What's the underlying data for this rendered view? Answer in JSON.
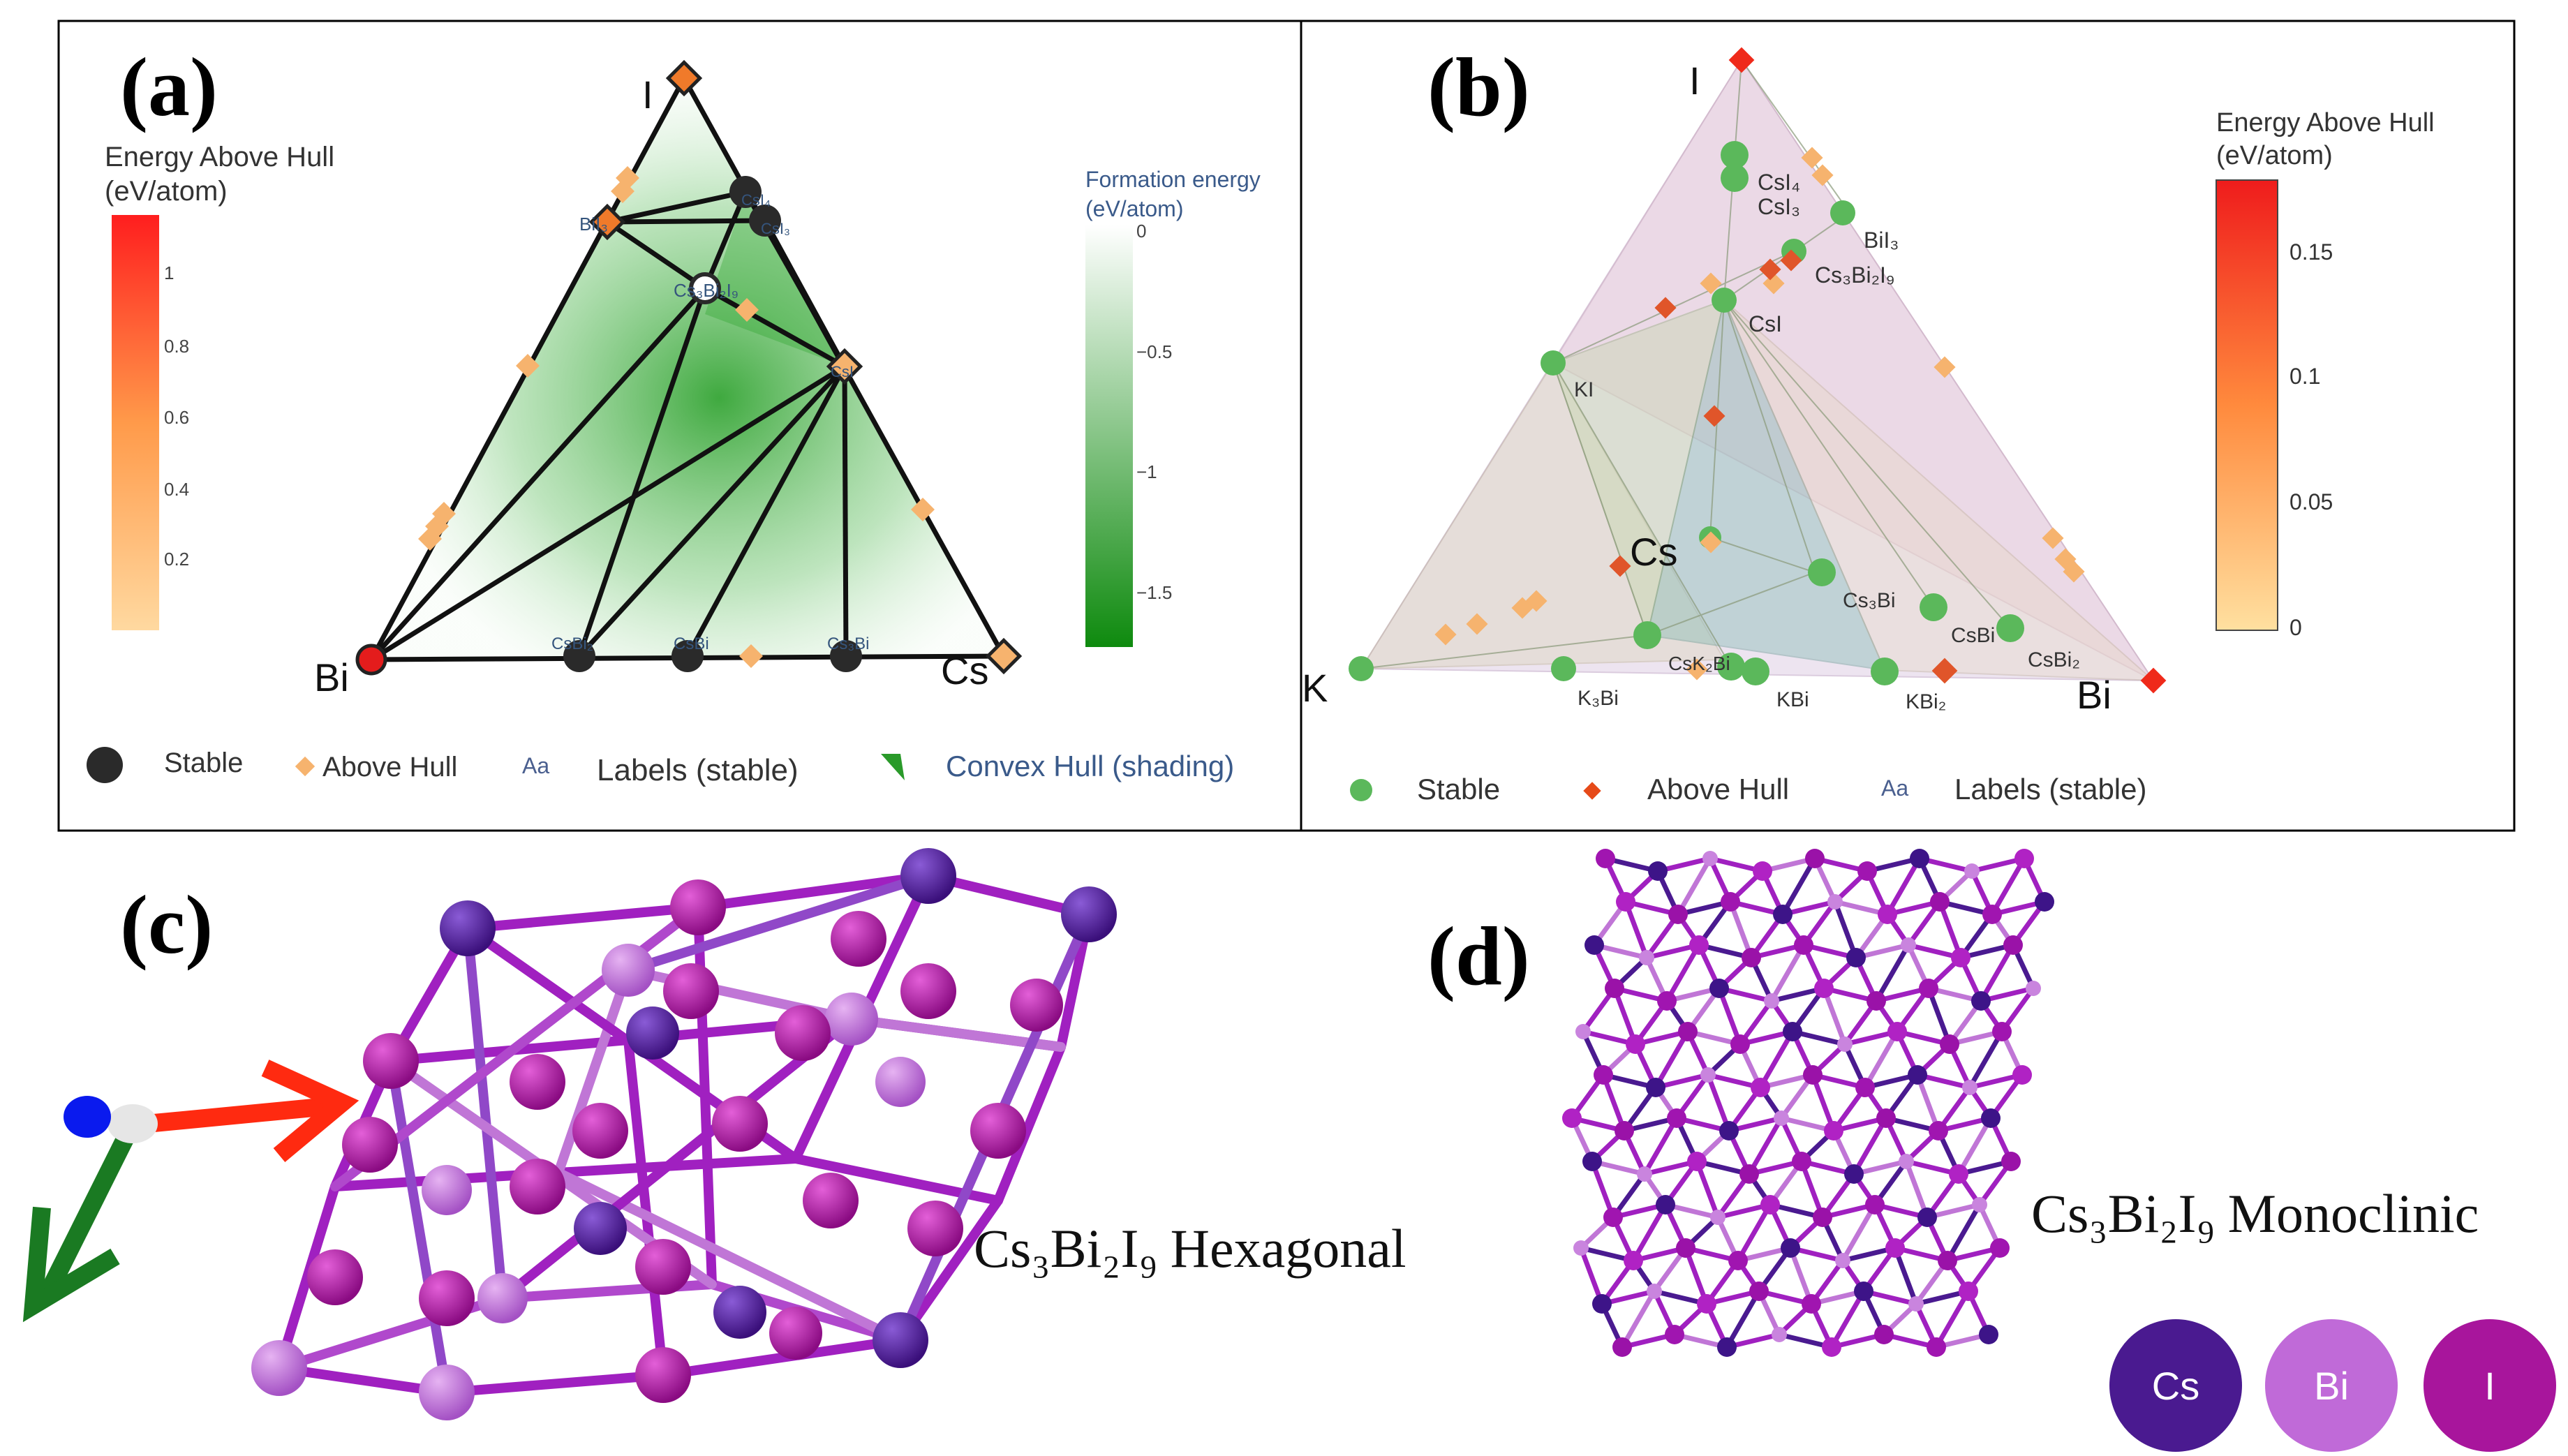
{
  "panel_a": {
    "label": "(a)",
    "vertices": {
      "top": "I",
      "left": "Bi",
      "right": "Cs"
    },
    "colorbar_hull": {
      "title_line1": "Energy Above Hull",
      "title_line2": "(eV/atom)",
      "ticks": [
        "1",
        "0.8",
        "0.6",
        "0.4",
        "0.2"
      ]
    },
    "colorbar_formation": {
      "title_line1": "Formation energy",
      "title_line2": "(eV/atom)",
      "ticks": [
        "0",
        "−0.5",
        "−1",
        "−1.5"
      ]
    },
    "compound_labels": {
      "bii3": "BiI₃",
      "cs3bi2i9": "Cs₃Bi₂I₉",
      "csi": "CsI",
      "csi3": "CsI₃",
      "csi4": "CsI₄",
      "csbi2": "CsBi₂",
      "cs3bi": "Cs₃Bi",
      "csbi": "CsBi"
    },
    "legend": {
      "stable": "Stable",
      "above_hull": "Above Hull",
      "labels_icon": "Aa",
      "labels": "Labels (stable)",
      "convex_hull": "Convex Hull (shading)"
    },
    "colors": {
      "stable": "#2a2a2a",
      "above_hull": "#f6b36e",
      "hull_fill": "#1f9a1f"
    }
  },
  "panel_b": {
    "label": "(b)",
    "vertices": {
      "top": "I",
      "left": "K",
      "right": "Bi",
      "inner": "Cs"
    },
    "colorbar": {
      "title_line1": "Energy Above Hull",
      "title_line2": "(eV/atom)",
      "ticks": [
        "0.15",
        "0.1",
        "0.05",
        "0"
      ]
    },
    "compound_labels": {
      "csi4": "CsI₄",
      "csi3": "CsI₃",
      "bii3": "BiI₃",
      "cs3bi2i9": "Cs₃Bi₂I₉",
      "csi": "CsI",
      "ki": "KI",
      "cs3bi": "Cs₃Bi",
      "csbi": "CsBi",
      "csbi2": "CsBi₂",
      "csk2bi": "CsK₂Bi",
      "k3bi": "K₃Bi",
      "kbi": "KBi",
      "kbi2": "KBi₂"
    },
    "legend": {
      "stable": "Stable",
      "above_hull": "Above Hull",
      "labels_icon": "Aa",
      "labels": "Labels (stable)"
    },
    "colors": {
      "stable": "#4caf50",
      "above_hull": "#e64a19"
    }
  },
  "panel_c": {
    "label": "(c)",
    "caption_formula": "Cs₃Bi₂I₉",
    "caption_phase": "Hexagonal"
  },
  "panel_d": {
    "label": "(d)",
    "caption_formula": "Cs₃Bi₂I₉",
    "caption_phase": "Monoclinic"
  },
  "element_key": [
    {
      "symbol": "Cs",
      "color": "#4a1a90"
    },
    {
      "symbol": "Bi",
      "color": "#c06ad8"
    },
    {
      "symbol": "I",
      "color": "#a8159c"
    }
  ]
}
